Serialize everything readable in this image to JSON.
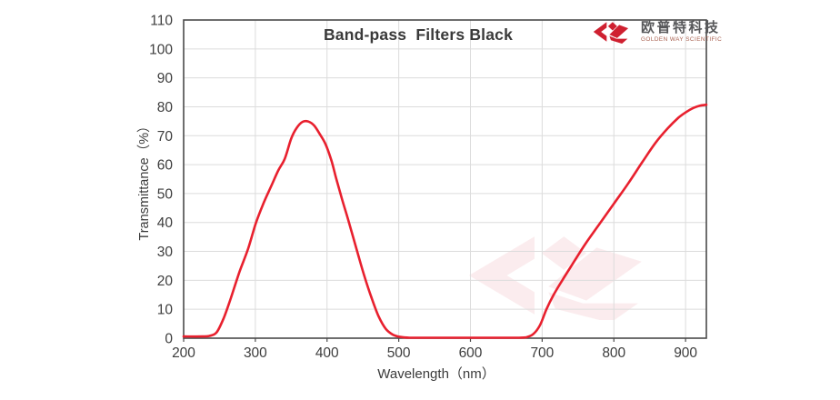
{
  "title": "Band-pass  Filters Black",
  "logo": {
    "cn": "欧普特科技",
    "en": "GOLDEN WAY SCIENTIFIC"
  },
  "colors": {
    "curve": "#e8202e",
    "grid": "#dcdcdc",
    "frame": "#4a4a4a",
    "tick_text": "#3d3d3d",
    "logo_red": "#cf2030",
    "logo_cn_text": "#57585a",
    "logo_en_text": "#a8604f"
  },
  "chart_data": {
    "type": "line",
    "title": "Band-pass  Filters Black",
    "xlabel": "Wavelength（nm）",
    "ylabel": "Transmittance（%）",
    "xlim": [
      200,
      929
    ],
    "ylim": [
      0,
      110
    ],
    "x_ticks": [
      200,
      300,
      400,
      500,
      600,
      700,
      800,
      900
    ],
    "x_gridlines": [
      300,
      400,
      500,
      600,
      700,
      800,
      900
    ],
    "y_ticks": [
      0,
      10,
      20,
      30,
      40,
      50,
      60,
      70,
      80,
      90,
      100,
      110
    ],
    "y_gridlines": [
      10,
      20,
      30,
      40,
      50,
      60,
      70,
      80,
      90,
      100
    ],
    "grid": true,
    "legend": false,
    "series": [
      {
        "name": "transmittance",
        "color": "#e8202e",
        "points": [
          [
            200,
            0.6
          ],
          [
            226,
            0.6
          ],
          [
            236,
            0.8
          ],
          [
            246,
            2
          ],
          [
            256,
            7
          ],
          [
            266,
            14
          ],
          [
            278,
            23
          ],
          [
            290,
            31
          ],
          [
            301,
            40
          ],
          [
            312,
            47
          ],
          [
            322,
            52.5
          ],
          [
            332,
            58
          ],
          [
            341,
            62
          ],
          [
            350,
            69
          ],
          [
            358,
            72.8
          ],
          [
            366,
            74.8
          ],
          [
            374,
            74.9
          ],
          [
            382,
            73.5
          ],
          [
            390,
            70.5
          ],
          [
            398,
            67
          ],
          [
            406,
            61.5
          ],
          [
            413,
            55
          ],
          [
            421,
            48
          ],
          [
            430,
            40.5
          ],
          [
            442,
            30
          ],
          [
            452,
            21.5
          ],
          [
            462,
            14
          ],
          [
            472,
            7.5
          ],
          [
            482,
            3.2
          ],
          [
            492,
            1.2
          ],
          [
            503,
            0.4
          ],
          [
            515,
            0.1
          ],
          [
            535,
            0
          ],
          [
            570,
            0
          ],
          [
            610,
            0
          ],
          [
            645,
            0
          ],
          [
            668,
            0
          ],
          [
            678,
            0.3
          ],
          [
            688,
            1.5
          ],
          [
            697,
            4.5
          ],
          [
            706,
            10
          ],
          [
            716,
            15
          ],
          [
            728,
            20
          ],
          [
            742,
            25.5
          ],
          [
            760,
            32.5
          ],
          [
            780,
            39.5
          ],
          [
            800,
            46.5
          ],
          [
            820,
            53.5
          ],
          [
            840,
            61
          ],
          [
            858,
            67.5
          ],
          [
            875,
            72.5
          ],
          [
            890,
            76.2
          ],
          [
            901,
            78.2
          ],
          [
            911,
            79.6
          ],
          [
            920,
            80.4
          ],
          [
            929,
            80.7
          ]
        ]
      }
    ]
  }
}
